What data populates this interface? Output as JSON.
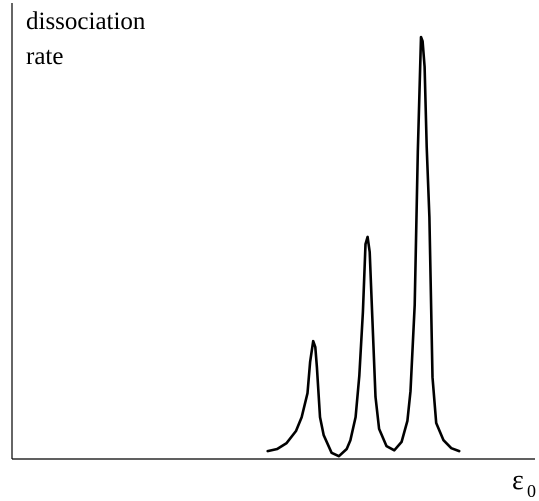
{
  "chart_data": {
    "type": "line",
    "ylabel": [
      "dissociation",
      "rate"
    ],
    "xlabel": "ε",
    "xlabel_subscript": "0",
    "grid": false,
    "legend": "none",
    "xlim": [
      0,
      100
    ],
    "ylim": [
      0,
      100
    ],
    "series": [
      {
        "x": [
          48.9,
          50.7,
          52.5,
          54.3,
          55.4,
          56.5,
          57.0,
          57.6,
          58.0,
          58.3,
          58.9,
          59.6,
          61.1,
          62.5,
          64.0,
          64.7,
          65.7,
          66.4,
          67.1,
          67.6,
          68.0,
          68.4,
          68.9,
          69.5,
          70.2,
          71.6,
          73.1,
          74.5,
          75.6,
          76.2,
          77.0,
          77.6,
          78.2,
          78.5,
          78.9,
          79.3,
          79.8,
          80.4,
          81.1,
          82.5,
          84.0,
          85.5
        ],
        "y": [
          1.4,
          1.9,
          3.3,
          6.2,
          9.5,
          15.2,
          22.6,
          27.6,
          26.2,
          21.4,
          9.5,
          5.2,
          1.0,
          0.2,
          1.9,
          4.0,
          9.5,
          19.3,
          34.5,
          50.7,
          52.4,
          48.8,
          33.3,
          14.3,
          6.7,
          2.6,
          1.6,
          3.6,
          8.6,
          15.7,
          36.2,
          72.6,
          100.0,
          99.0,
          92.9,
          73.8,
          57.1,
          19.0,
          8.1,
          4.0,
          2.1,
          1.4
        ]
      }
    ]
  }
}
